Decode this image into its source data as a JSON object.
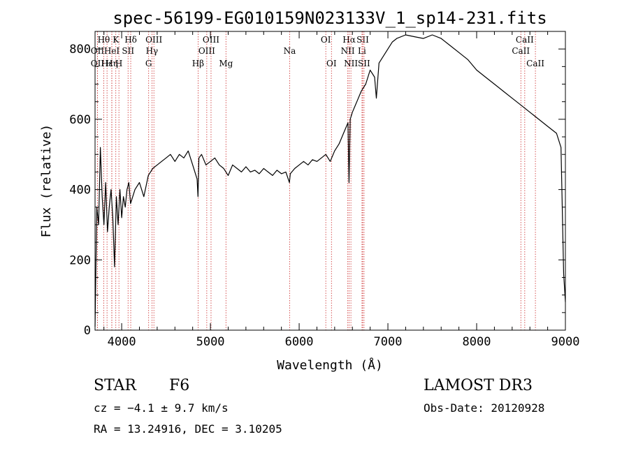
{
  "chart_data": {
    "type": "line",
    "title": "spec-56199-EG010159N023133V_1_sp14-231.fits",
    "xlabel": "Wavelength (Å)",
    "ylabel": "Flux (relative)",
    "xlim": [
      3700,
      9000
    ],
    "ylim": [
      0,
      850
    ],
    "xticks": [
      4000,
      5000,
      6000,
      7000,
      8000,
      9000
    ],
    "yticks": [
      0,
      200,
      400,
      600,
      800
    ],
    "series": [
      {
        "name": "flux",
        "x": [
          3700,
          3720,
          3740,
          3760,
          3780,
          3800,
          3820,
          3840,
          3860,
          3880,
          3900,
          3920,
          3940,
          3960,
          3980,
          4000,
          4020,
          4040,
          4060,
          4080,
          4100,
          4150,
          4200,
          4250,
          4300,
          4350,
          4400,
          4450,
          4500,
          4550,
          4600,
          4650,
          4700,
          4750,
          4800,
          4850,
          4860,
          4870,
          4900,
          4950,
          5000,
          5050,
          5100,
          5150,
          5200,
          5250,
          5300,
          5350,
          5400,
          5450,
          5500,
          5550,
          5600,
          5650,
          5700,
          5750,
          5800,
          5850,
          5890,
          5900,
          5950,
          6000,
          6050,
          6100,
          6150,
          6200,
          6250,
          6300,
          6350,
          6400,
          6450,
          6500,
          6550,
          6562,
          6575,
          6600,
          6650,
          6700,
          6750,
          6800,
          6850,
          6870,
          6900,
          6950,
          7000,
          7050,
          7100,
          7200,
          7300,
          7400,
          7500,
          7600,
          7700,
          7800,
          7900,
          8000,
          8100,
          8200,
          8300,
          8400,
          8500,
          8600,
          8700,
          8800,
          8900,
          8950,
          8980,
          9000
        ],
        "y": [
          10,
          350,
          300,
          520,
          380,
          300,
          420,
          280,
          350,
          400,
          320,
          180,
          380,
          300,
          400,
          320,
          380,
          350,
          400,
          420,
          360,
          400,
          420,
          380,
          440,
          460,
          470,
          480,
          490,
          500,
          480,
          500,
          490,
          510,
          470,
          430,
          380,
          490,
          500,
          470,
          480,
          490,
          470,
          460,
          440,
          470,
          460,
          450,
          465,
          450,
          455,
          445,
          460,
          450,
          440,
          455,
          445,
          450,
          420,
          445,
          460,
          470,
          480,
          470,
          485,
          480,
          490,
          500,
          480,
          510,
          530,
          560,
          590,
          420,
          600,
          620,
          650,
          680,
          700,
          740,
          720,
          660,
          760,
          780,
          800,
          820,
          830,
          840,
          835,
          830,
          840,
          830,
          810,
          790,
          770,
          740,
          720,
          700,
          680,
          660,
          640,
          620,
          600,
          580,
          560,
          520,
          160,
          80
        ]
      }
    ],
    "spectral_lines": [
      {
        "label": "Hθ",
        "x": 3798,
        "row": 1
      },
      {
        "label": "OII",
        "x": 3727,
        "row": 2
      },
      {
        "label": "OII",
        "x": 3727,
        "row": 3
      },
      {
        "label": "Hε",
        "x": 3835,
        "row": 3
      },
      {
        "label": "K",
        "x": 3934,
        "row": 1
      },
      {
        "label": "HeI",
        "x": 3889,
        "row": 2
      },
      {
        "label": "SII",
        "x": 4072,
        "row": 2
      },
      {
        "label": "Hη",
        "x": 3889,
        "row": 3
      },
      {
        "label": "H",
        "x": 3969,
        "row": 3
      },
      {
        "label": "Hδ",
        "x": 4102,
        "row": 1
      },
      {
        "label": "OIII",
        "x": 4363,
        "row": 1
      },
      {
        "label": "Hγ",
        "x": 4341,
        "row": 2
      },
      {
        "label": "G",
        "x": 4304,
        "row": 3
      },
      {
        "label": "Hβ",
        "x": 4861,
        "row": 3
      },
      {
        "label": "OIII",
        "x": 5007,
        "row": 1
      },
      {
        "label": "OIII",
        "x": 4959,
        "row": 2
      },
      {
        "label": "Mg",
        "x": 5175,
        "row": 3
      },
      {
        "label": "Na",
        "x": 5893,
        "row": 2
      },
      {
        "label": "OI",
        "x": 6300,
        "row": 1
      },
      {
        "label": "OI",
        "x": 6364,
        "row": 3
      },
      {
        "label": "Hα",
        "x": 6563,
        "row": 1
      },
      {
        "label": "SII",
        "x": 6716,
        "row": 1
      },
      {
        "label": "NII",
        "x": 6548,
        "row": 2
      },
      {
        "label": "Li",
        "x": 6708,
        "row": 2
      },
      {
        "label": "NII",
        "x": 6583,
        "row": 3
      },
      {
        "label": "SII",
        "x": 6731,
        "row": 3
      },
      {
        "label": "CaII",
        "x": 8542,
        "row": 1
      },
      {
        "label": "CaII",
        "x": 8498,
        "row": 2
      },
      {
        "label": "CaII",
        "x": 8662,
        "row": 3
      }
    ]
  },
  "info": {
    "class": "STAR",
    "subclass": "F6",
    "survey": "LAMOST DR3",
    "cz": "cz = −4.1 ± 9.7 km/s",
    "obs_date": "Obs-Date: 20120928",
    "radec": "RA =  13.24916, DEC =   3.10205"
  },
  "colors": {
    "line_marker": "#cc2a2a",
    "flux": "#000000"
  }
}
